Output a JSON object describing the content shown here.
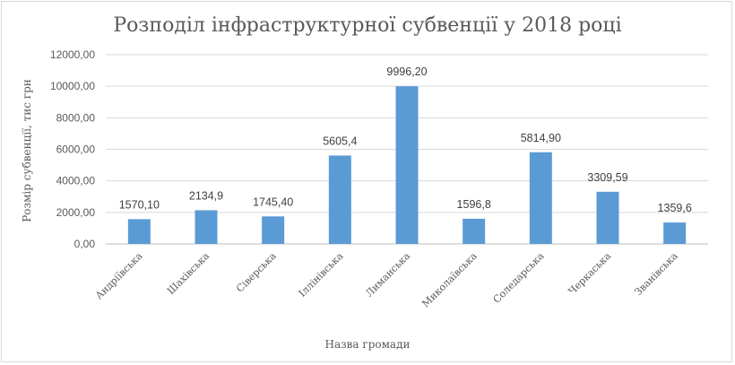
{
  "chart_data": {
    "type": "bar",
    "title": "Розподіл інфраструктурної субвенції у 2018 році",
    "xlabel": "Назва громади",
    "ylabel": "Розмір субвенції, тис грн",
    "ylim": [
      0,
      12000
    ],
    "yticks": [
      "0,00",
      "2000,00",
      "4000,00",
      "6000,00",
      "8000,00",
      "10000,00",
      "12000,00"
    ],
    "grid": true,
    "bar_color": "#5b9bd5",
    "categories": [
      "Андріївська",
      "Шахівська",
      "Сіверська",
      "Іллінівська",
      "Лиманська",
      "Миколаївська",
      "Соледарська",
      "Черкаська",
      "Званівська"
    ],
    "values": [
      1570.1,
      2134.9,
      1745.4,
      5605.4,
      9996.2,
      1596.8,
      5814.9,
      3309.59,
      1359.6
    ],
    "data_labels": [
      "1570,10",
      "2134,9",
      "1745,40",
      "5605,4",
      "9996,20",
      "1596,8",
      "5814,90",
      "3309,59",
      "1359,6"
    ]
  }
}
